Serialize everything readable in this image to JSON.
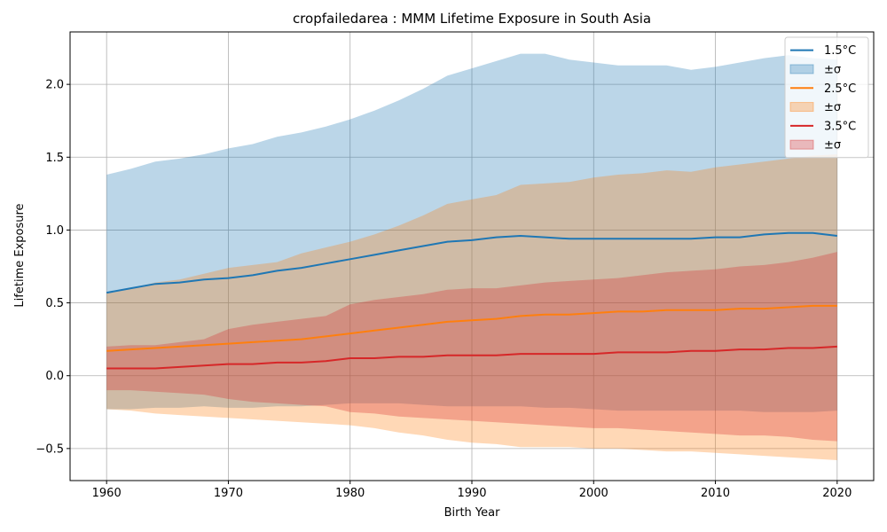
{
  "chart_data": {
    "type": "line",
    "title": "cropfailedarea : MMM Lifetime Exposure in South Asia",
    "xlabel": "Birth Year",
    "ylabel": "Lifetime Exposure",
    "xlim": [
      1957,
      2023
    ],
    "ylim": [
      -0.72,
      2.36
    ],
    "xticks": [
      1960,
      1970,
      1980,
      1990,
      2000,
      2010,
      2020
    ],
    "yticks": [
      -0.5,
      0.0,
      0.5,
      1.0,
      1.5,
      2.0
    ],
    "ytick_labels": [
      "−0.5",
      "0.0",
      "0.5",
      "1.0",
      "1.5",
      "2.0"
    ],
    "grid": true,
    "legend_position": "top-right",
    "x": [
      1960,
      1962,
      1964,
      1966,
      1968,
      1970,
      1972,
      1974,
      1976,
      1978,
      1980,
      1982,
      1984,
      1986,
      1988,
      1990,
      1992,
      1994,
      1996,
      1998,
      2000,
      2002,
      2004,
      2006,
      2008,
      2010,
      2012,
      2014,
      2016,
      2018,
      2020
    ],
    "series": [
      {
        "name": "1.5°C",
        "band_label": "±σ",
        "color": "#1f77b4",
        "band_color": "#1f77b4",
        "band_alpha": 0.3,
        "values": [
          0.57,
          0.6,
          0.63,
          0.64,
          0.66,
          0.67,
          0.69,
          0.72,
          0.74,
          0.77,
          0.8,
          0.83,
          0.86,
          0.89,
          0.92,
          0.93,
          0.95,
          0.96,
          0.95,
          0.94,
          0.94,
          0.94,
          0.94,
          0.94,
          0.94,
          0.95,
          0.95,
          0.97,
          0.98,
          0.98,
          0.96
        ],
        "upper": [
          1.38,
          1.42,
          1.47,
          1.49,
          1.52,
          1.56,
          1.59,
          1.64,
          1.67,
          1.71,
          1.76,
          1.82,
          1.89,
          1.97,
          2.06,
          2.11,
          2.16,
          2.21,
          2.21,
          2.17,
          2.15,
          2.13,
          2.13,
          2.13,
          2.1,
          2.12,
          2.15,
          2.18,
          2.2,
          2.18,
          2.17
        ],
        "lower": [
          -0.23,
          -0.23,
          -0.22,
          -0.22,
          -0.21,
          -0.22,
          -0.22,
          -0.21,
          -0.21,
          -0.2,
          -0.19,
          -0.19,
          -0.19,
          -0.2,
          -0.21,
          -0.21,
          -0.21,
          -0.21,
          -0.22,
          -0.22,
          -0.23,
          -0.24,
          -0.24,
          -0.24,
          -0.24,
          -0.24,
          -0.24,
          -0.25,
          -0.25,
          -0.25,
          -0.24
        ]
      },
      {
        "name": "2.5°C",
        "band_label": "±σ",
        "color": "#ff7f0e",
        "band_color": "#ff7f0e",
        "band_alpha": 0.3,
        "values": [
          0.17,
          0.18,
          0.19,
          0.2,
          0.21,
          0.22,
          0.23,
          0.24,
          0.25,
          0.27,
          0.29,
          0.31,
          0.33,
          0.35,
          0.37,
          0.38,
          0.39,
          0.41,
          0.42,
          0.42,
          0.43,
          0.44,
          0.44,
          0.45,
          0.45,
          0.45,
          0.46,
          0.46,
          0.47,
          0.48,
          0.48
        ],
        "upper": [
          0.57,
          0.6,
          0.64,
          0.66,
          0.7,
          0.74,
          0.76,
          0.78,
          0.84,
          0.88,
          0.92,
          0.97,
          1.03,
          1.1,
          1.18,
          1.21,
          1.24,
          1.31,
          1.32,
          1.33,
          1.36,
          1.38,
          1.39,
          1.41,
          1.4,
          1.43,
          1.45,
          1.47,
          1.49,
          1.51,
          1.52
        ],
        "lower": [
          -0.23,
          -0.24,
          -0.26,
          -0.27,
          -0.28,
          -0.29,
          -0.3,
          -0.31,
          -0.32,
          -0.33,
          -0.34,
          -0.36,
          -0.39,
          -0.41,
          -0.44,
          -0.46,
          -0.47,
          -0.49,
          -0.49,
          -0.49,
          -0.5,
          -0.5,
          -0.51,
          -0.52,
          -0.52,
          -0.53,
          -0.54,
          -0.55,
          -0.56,
          -0.57,
          -0.58
        ]
      },
      {
        "name": "3.5°C",
        "band_label": "±σ",
        "color": "#d62728",
        "band_color": "#d62728",
        "band_alpha": 0.3,
        "values": [
          0.05,
          0.05,
          0.05,
          0.06,
          0.07,
          0.08,
          0.08,
          0.09,
          0.09,
          0.1,
          0.12,
          0.12,
          0.13,
          0.13,
          0.14,
          0.14,
          0.14,
          0.15,
          0.15,
          0.15,
          0.15,
          0.16,
          0.16,
          0.16,
          0.17,
          0.17,
          0.18,
          0.18,
          0.19,
          0.19,
          0.2
        ],
        "upper": [
          0.2,
          0.21,
          0.21,
          0.23,
          0.25,
          0.32,
          0.35,
          0.37,
          0.39,
          0.41,
          0.49,
          0.52,
          0.54,
          0.56,
          0.59,
          0.6,
          0.6,
          0.62,
          0.64,
          0.65,
          0.66,
          0.67,
          0.69,
          0.71,
          0.72,
          0.73,
          0.75,
          0.76,
          0.78,
          0.81,
          0.85
        ],
        "lower": [
          -0.1,
          -0.1,
          -0.11,
          -0.12,
          -0.13,
          -0.16,
          -0.18,
          -0.19,
          -0.2,
          -0.21,
          -0.25,
          -0.26,
          -0.28,
          -0.29,
          -0.3,
          -0.31,
          -0.32,
          -0.33,
          -0.34,
          -0.35,
          -0.36,
          -0.36,
          -0.37,
          -0.38,
          -0.39,
          -0.4,
          -0.41,
          -0.41,
          -0.42,
          -0.44,
          -0.45
        ]
      }
    ]
  }
}
